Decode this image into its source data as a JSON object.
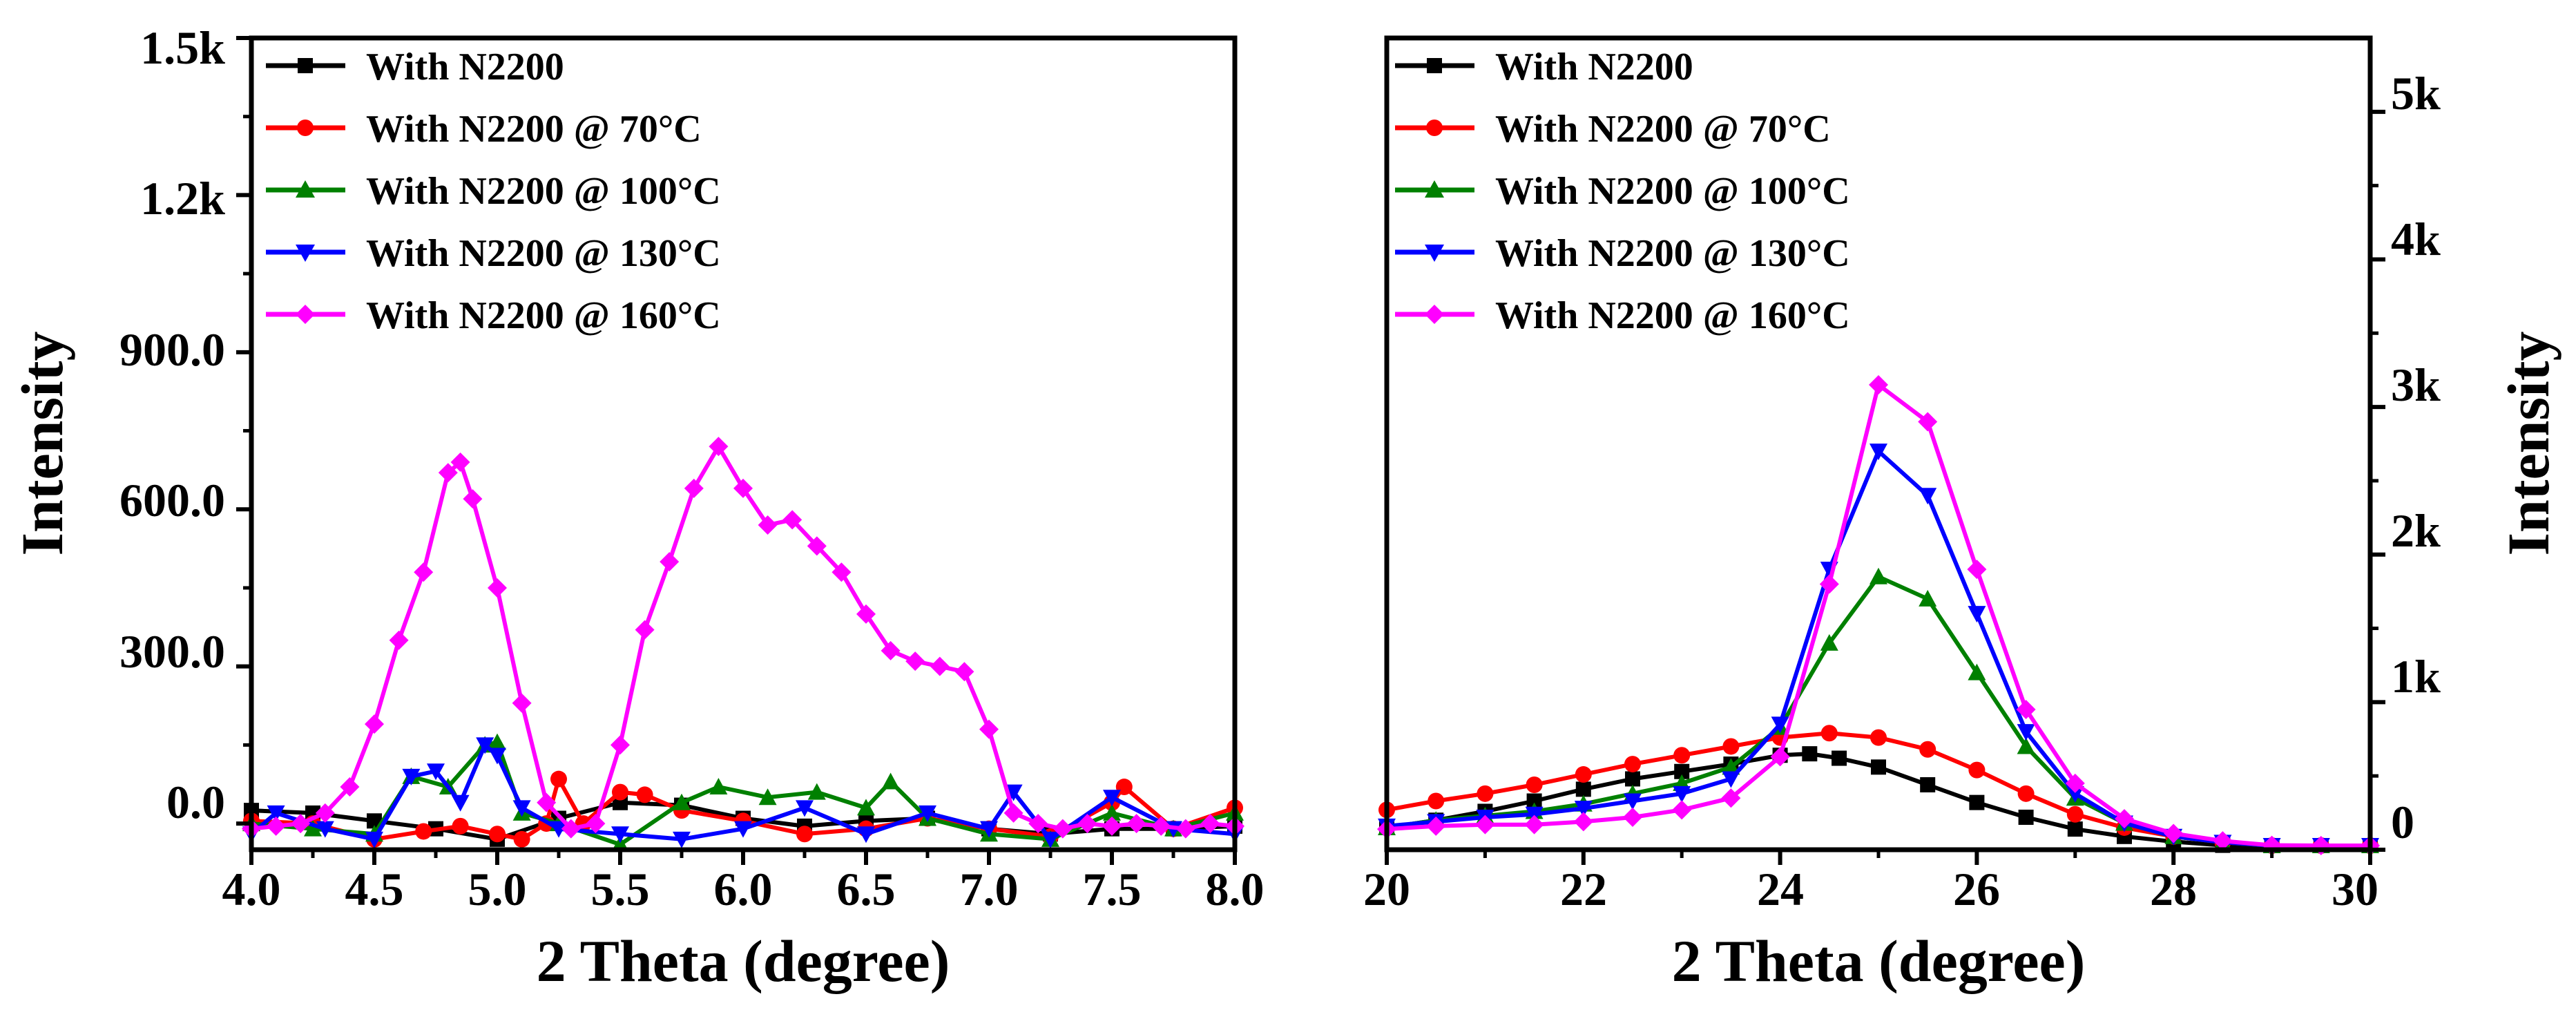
{
  "chart_data": [
    {
      "type": "line",
      "title": "",
      "xlabel": "2 Theta (degree)",
      "ylabel": "Intensity",
      "xlim": [
        4.0,
        8.0
      ],
      "ylim": [
        -50,
        1500
      ],
      "x_ticks": [
        "4.0",
        "4.5",
        "5.0",
        "5.5",
        "6.0",
        "6.5",
        "7.0",
        "7.5",
        "8.0"
      ],
      "y_ticks": [
        "0.0",
        "300.0",
        "600.0",
        "900.0",
        "1.2k",
        "1.5k"
      ],
      "y_tick_values": [
        0,
        300,
        600,
        900,
        1200,
        1500
      ],
      "y_axis_side": "left",
      "legend_position": "top-left",
      "series": [
        {
          "name": "With N2200",
          "color": "#000000",
          "marker": "square",
          "x": [
            4.0,
            4.25,
            4.5,
            4.75,
            5.0,
            5.25,
            5.5,
            5.75,
            6.0,
            6.25,
            6.5,
            6.75,
            7.0,
            7.25,
            7.5,
            7.75,
            8.0
          ],
          "y": [
            25,
            20,
            5,
            -10,
            -30,
            10,
            40,
            35,
            10,
            -5,
            5,
            10,
            -10,
            -20,
            -10,
            -10,
            -5
          ]
        },
        {
          "name": "With N2200 @ 70°C",
          "color": "#ff0000",
          "marker": "circle",
          "x": [
            4.0,
            4.25,
            4.5,
            4.7,
            4.85,
            5.0,
            5.1,
            5.2,
            5.25,
            5.35,
            5.5,
            5.6,
            5.75,
            6.0,
            6.25,
            6.5,
            6.75,
            7.0,
            7.25,
            7.5,
            7.55,
            7.75,
            8.0
          ],
          "y": [
            5,
            0,
            -30,
            -15,
            -5,
            -20,
            -30,
            0,
            85,
            0,
            60,
            55,
            25,
            5,
            -20,
            -10,
            10,
            -10,
            -25,
            40,
            70,
            -10,
            30
          ]
        },
        {
          "name": "With N2200 @ 100°C",
          "color": "#008000",
          "marker": "triangle-up",
          "x": [
            4.0,
            4.25,
            4.5,
            4.65,
            4.8,
            4.95,
            5.0,
            5.1,
            5.25,
            5.5,
            5.75,
            5.9,
            6.1,
            6.3,
            6.5,
            6.6,
            6.75,
            7.0,
            7.25,
            7.5,
            7.75,
            8.0
          ],
          "y": [
            0,
            -10,
            -20,
            90,
            70,
            150,
            155,
            20,
            0,
            -40,
            40,
            70,
            50,
            60,
            30,
            80,
            10,
            -20,
            -30,
            20,
            -10,
            20
          ]
        },
        {
          "name": "With N2200 @ 130°C",
          "color": "#0000ff",
          "marker": "triangle-down",
          "x": [
            4.0,
            4.1,
            4.3,
            4.5,
            4.65,
            4.75,
            4.85,
            4.95,
            5.0,
            5.1,
            5.25,
            5.5,
            5.75,
            6.0,
            6.25,
            6.5,
            6.75,
            7.0,
            7.1,
            7.25,
            7.5,
            7.75,
            8.0
          ],
          "y": [
            -20,
            20,
            -10,
            -30,
            90,
            100,
            40,
            150,
            130,
            30,
            -10,
            -20,
            -30,
            -10,
            30,
            -20,
            20,
            -10,
            60,
            -30,
            50,
            -10,
            -20
          ]
        },
        {
          "name": "With N2200 @ 160°C",
          "color": "#ff00ff",
          "marker": "diamond",
          "x": [
            4.0,
            4.1,
            4.2,
            4.3,
            4.4,
            4.5,
            4.6,
            4.7,
            4.8,
            4.85,
            4.9,
            5.0,
            5.1,
            5.2,
            5.3,
            5.4,
            5.5,
            5.6,
            5.7,
            5.8,
            5.9,
            6.0,
            6.1,
            6.2,
            6.3,
            6.4,
            6.5,
            6.6,
            6.7,
            6.8,
            6.9,
            7.0,
            7.1,
            7.2,
            7.3,
            7.4,
            7.5,
            7.6,
            7.7,
            7.8,
            7.9,
            8.0
          ],
          "y": [
            -10,
            -5,
            0,
            20,
            70,
            190,
            350,
            480,
            670,
            690,
            620,
            450,
            230,
            40,
            -10,
            0,
            150,
            370,
            500,
            640,
            720,
            640,
            570,
            580,
            530,
            480,
            400,
            330,
            310,
            300,
            290,
            180,
            20,
            0,
            -10,
            0,
            -5,
            0,
            -5,
            -10,
            0,
            -5
          ]
        }
      ]
    },
    {
      "type": "line",
      "title": "",
      "xlabel": "2 Theta (degree)",
      "ylabel": "Intensity",
      "xlim": [
        20,
        30
      ],
      "ylim": [
        0,
        5500
      ],
      "x_ticks": [
        "20",
        "22",
        "24",
        "26",
        "28",
        "30"
      ],
      "y_ticks": [
        "0",
        "1k",
        "2k",
        "3k",
        "4k",
        "5k"
      ],
      "y_tick_values": [
        0,
        1000,
        2000,
        3000,
        4000,
        5000
      ],
      "y_axis_side": "right",
      "legend_position": "top-left",
      "series": [
        {
          "name": "With N2200",
          "color": "#000000",
          "marker": "square",
          "x": [
            20,
            20.5,
            21,
            21.5,
            22,
            22.5,
            23,
            23.5,
            24,
            24.3,
            24.6,
            25,
            25.5,
            26,
            26.5,
            27,
            27.5,
            28,
            28.5,
            29,
            29.5,
            30
          ],
          "y": [
            150,
            200,
            260,
            330,
            410,
            480,
            530,
            580,
            640,
            650,
            620,
            560,
            440,
            320,
            220,
            140,
            90,
            55,
            30,
            15,
            8,
            5
          ]
        },
        {
          "name": "With N2200 @ 70°C",
          "color": "#ff0000",
          "marker": "circle",
          "x": [
            20,
            20.5,
            21,
            21.5,
            22,
            22.5,
            23,
            23.5,
            24,
            24.5,
            25,
            25.5,
            26,
            26.5,
            27,
            27.5,
            28,
            28.5,
            29,
            29.5,
            30
          ],
          "y": [
            270,
            330,
            380,
            440,
            510,
            580,
            640,
            700,
            760,
            790,
            760,
            680,
            540,
            380,
            240,
            150,
            90,
            50,
            25,
            10,
            5
          ]
        },
        {
          "name": "With N2200 @ 100°C",
          "color": "#008000",
          "marker": "triangle-up",
          "x": [
            20,
            20.5,
            21,
            21.5,
            22,
            22.5,
            23,
            23.5,
            24,
            24.5,
            25,
            25.5,
            26,
            26.5,
            27,
            27.5,
            28,
            28.5,
            29,
            29.5,
            30
          ],
          "y": [
            150,
            200,
            230,
            260,
            310,
            380,
            450,
            560,
            830,
            1400,
            1850,
            1700,
            1200,
            700,
            350,
            180,
            90,
            50,
            25,
            10,
            5
          ]
        },
        {
          "name": "With N2200 @ 130°C",
          "color": "#0000ff",
          "marker": "triangle-down",
          "x": [
            20,
            20.5,
            21,
            21.5,
            22,
            22.5,
            23,
            23.5,
            24,
            24.5,
            25,
            25.5,
            26,
            26.5,
            27,
            27.5,
            28,
            28.5,
            29,
            29.5,
            30
          ],
          "y": [
            160,
            190,
            220,
            240,
            280,
            330,
            380,
            480,
            850,
            1900,
            2700,
            2400,
            1600,
            800,
            380,
            180,
            90,
            50,
            25,
            10,
            5
          ]
        },
        {
          "name": "With N2200 @ 160°C",
          "color": "#ff00ff",
          "marker": "diamond",
          "x": [
            20,
            20.5,
            21,
            21.5,
            22,
            22.5,
            23,
            23.5,
            24,
            24.5,
            25,
            25.5,
            26,
            26.5,
            27,
            27.5,
            28,
            28.5,
            29,
            29.5,
            30
          ],
          "y": [
            140,
            160,
            170,
            170,
            190,
            220,
            270,
            350,
            630,
            1800,
            3150,
            2900,
            1900,
            950,
            450,
            210,
            110,
            60,
            30,
            15,
            5
          ]
        }
      ]
    }
  ]
}
